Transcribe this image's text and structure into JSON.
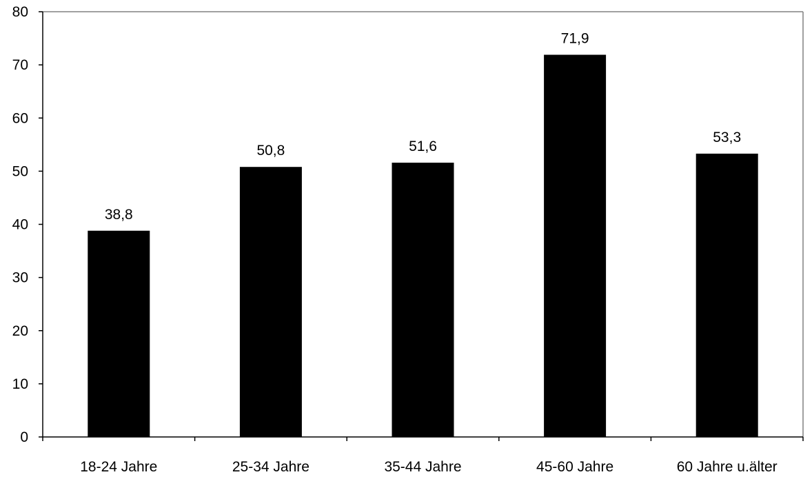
{
  "chart_data": {
    "type": "bar",
    "title": "",
    "xlabel": "",
    "ylabel": "",
    "categories": [
      "18-24 Jahre",
      "25-34 Jahre",
      "35-44 Jahre",
      "45-60 Jahre",
      "60 Jahre u.älter"
    ],
    "values": [
      38.8,
      50.8,
      51.6,
      71.9,
      53.3
    ],
    "value_labels": [
      "38,8",
      "50,8",
      "51,6",
      "71,9",
      "53,3"
    ],
    "ylim": [
      0,
      80
    ],
    "yticks": [
      0,
      10,
      20,
      30,
      40,
      50,
      60,
      70,
      80
    ],
    "grid": false,
    "legend": "none",
    "bar_color": "#000000",
    "plot_border_color": "#808080"
  }
}
